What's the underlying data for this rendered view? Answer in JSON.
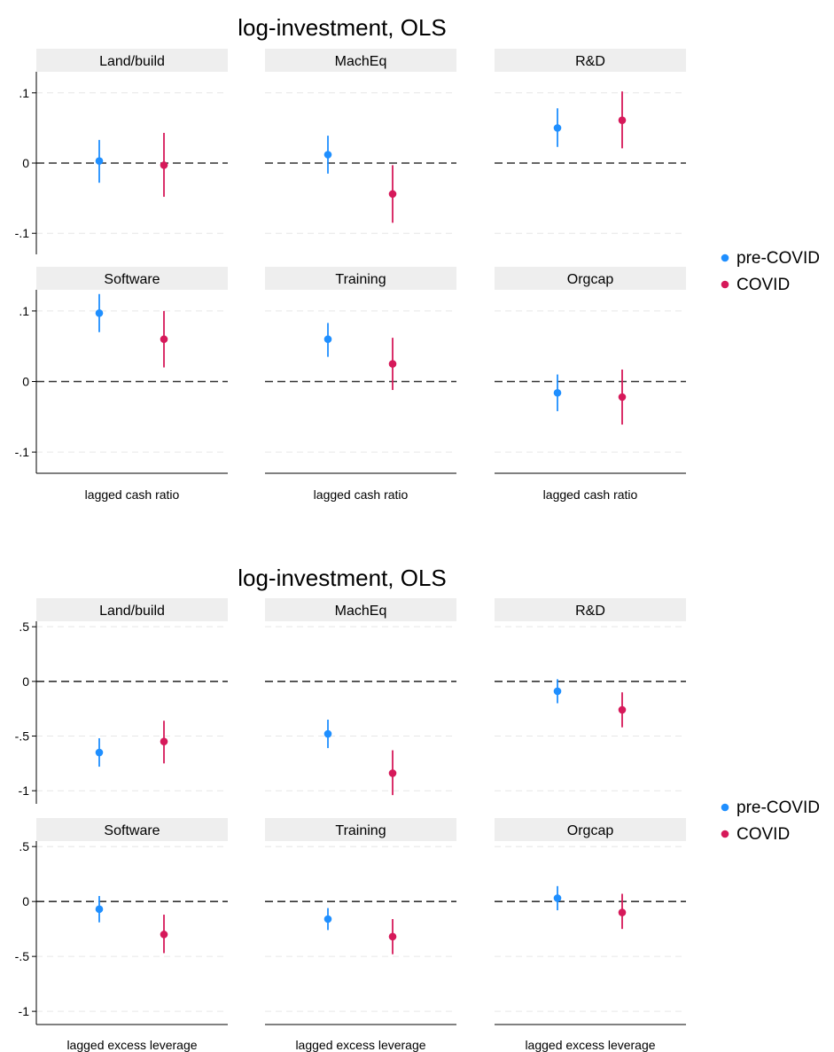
{
  "colors": {
    "pre_covid": "#1f8fff",
    "covid": "#d6195a",
    "strip": "#eeeeee",
    "grid": "#e6e6e6",
    "zero_line": "#333333"
  },
  "legend": {
    "placement": "right",
    "items": [
      {
        "label": "pre-COVID",
        "color": "#1f8fff"
      },
      {
        "label": "COVID",
        "color": "#d6195a"
      }
    ]
  },
  "chart_data": [
    {
      "type": "scatter",
      "title": "log-investment, OLS",
      "xlabel": "lagged cash ratio",
      "panel_layout": "2 rows x 3 columns",
      "ylim": [
        -0.13,
        0.13
      ],
      "yticks": [
        {
          "v": 0.1,
          "label": ".1"
        },
        {
          "v": 0,
          "label": "0"
        },
        {
          "v": -0.1,
          "label": "-.1"
        }
      ],
      "reference_line": 0,
      "grid": true,
      "panels": [
        {
          "label": "Land/build",
          "points": [
            {
              "group": "pre-COVID",
              "est": 0.003,
              "lo": -0.028,
              "hi": 0.033
            },
            {
              "group": "COVID",
              "est": -0.003,
              "lo": -0.048,
              "hi": 0.043
            }
          ]
        },
        {
          "label": "MachEq",
          "points": [
            {
              "group": "pre-COVID",
              "est": 0.012,
              "lo": -0.015,
              "hi": 0.039
            },
            {
              "group": "COVID",
              "est": -0.044,
              "lo": -0.085,
              "hi": -0.003
            }
          ]
        },
        {
          "label": "R&D",
          "points": [
            {
              "group": "pre-COVID",
              "est": 0.05,
              "lo": 0.023,
              "hi": 0.078
            },
            {
              "group": "COVID",
              "est": 0.061,
              "lo": 0.021,
              "hi": 0.102
            }
          ]
        },
        {
          "label": "Software",
          "points": [
            {
              "group": "pre-COVID",
              "est": 0.097,
              "lo": 0.07,
              "hi": 0.124
            },
            {
              "group": "COVID",
              "est": 0.06,
              "lo": 0.02,
              "hi": 0.1
            }
          ]
        },
        {
          "label": "Training",
          "points": [
            {
              "group": "pre-COVID",
              "est": 0.06,
              "lo": 0.035,
              "hi": 0.083
            },
            {
              "group": "COVID",
              "est": 0.025,
              "lo": -0.012,
              "hi": 0.062
            }
          ]
        },
        {
          "label": "Orgcap",
          "points": [
            {
              "group": "pre-COVID",
              "est": -0.016,
              "lo": -0.042,
              "hi": 0.01
            },
            {
              "group": "COVID",
              "est": -0.022,
              "lo": -0.061,
              "hi": 0.017
            }
          ]
        }
      ]
    },
    {
      "type": "scatter",
      "title": "log-investment, OLS",
      "xlabel": "lagged excess leverage",
      "panel_layout": "2 rows x 3 columns",
      "ylim": [
        -1.12,
        0.55
      ],
      "yticks": [
        {
          "v": 0.5,
          "label": ".5"
        },
        {
          "v": 0,
          "label": "0"
        },
        {
          "v": -0.5,
          "label": "-.5"
        },
        {
          "v": -1,
          "label": "-1"
        }
      ],
      "reference_line": 0,
      "grid": true,
      "panels": [
        {
          "label": "Land/build",
          "points": [
            {
              "group": "pre-COVID",
              "est": -0.65,
              "lo": -0.78,
              "hi": -0.52
            },
            {
              "group": "COVID",
              "est": -0.55,
              "lo": -0.75,
              "hi": -0.36
            }
          ]
        },
        {
          "label": "MachEq",
          "points": [
            {
              "group": "pre-COVID",
              "est": -0.48,
              "lo": -0.61,
              "hi": -0.35
            },
            {
              "group": "COVID",
              "est": -0.84,
              "lo": -1.04,
              "hi": -0.63
            }
          ]
        },
        {
          "label": "R&D",
          "points": [
            {
              "group": "pre-COVID",
              "est": -0.09,
              "lo": -0.2,
              "hi": 0.02
            },
            {
              "group": "COVID",
              "est": -0.26,
              "lo": -0.42,
              "hi": -0.1
            }
          ]
        },
        {
          "label": "Software",
          "points": [
            {
              "group": "pre-COVID",
              "est": -0.07,
              "lo": -0.19,
              "hi": 0.05
            },
            {
              "group": "COVID",
              "est": -0.3,
              "lo": -0.47,
              "hi": -0.12
            }
          ]
        },
        {
          "label": "Training",
          "points": [
            {
              "group": "pre-COVID",
              "est": -0.16,
              "lo": -0.26,
              "hi": -0.06
            },
            {
              "group": "COVID",
              "est": -0.32,
              "lo": -0.48,
              "hi": -0.16
            }
          ]
        },
        {
          "label": "Orgcap",
          "points": [
            {
              "group": "pre-COVID",
              "est": 0.03,
              "lo": -0.08,
              "hi": 0.14
            },
            {
              "group": "COVID",
              "est": -0.1,
              "lo": -0.25,
              "hi": 0.07
            }
          ]
        }
      ]
    }
  ]
}
